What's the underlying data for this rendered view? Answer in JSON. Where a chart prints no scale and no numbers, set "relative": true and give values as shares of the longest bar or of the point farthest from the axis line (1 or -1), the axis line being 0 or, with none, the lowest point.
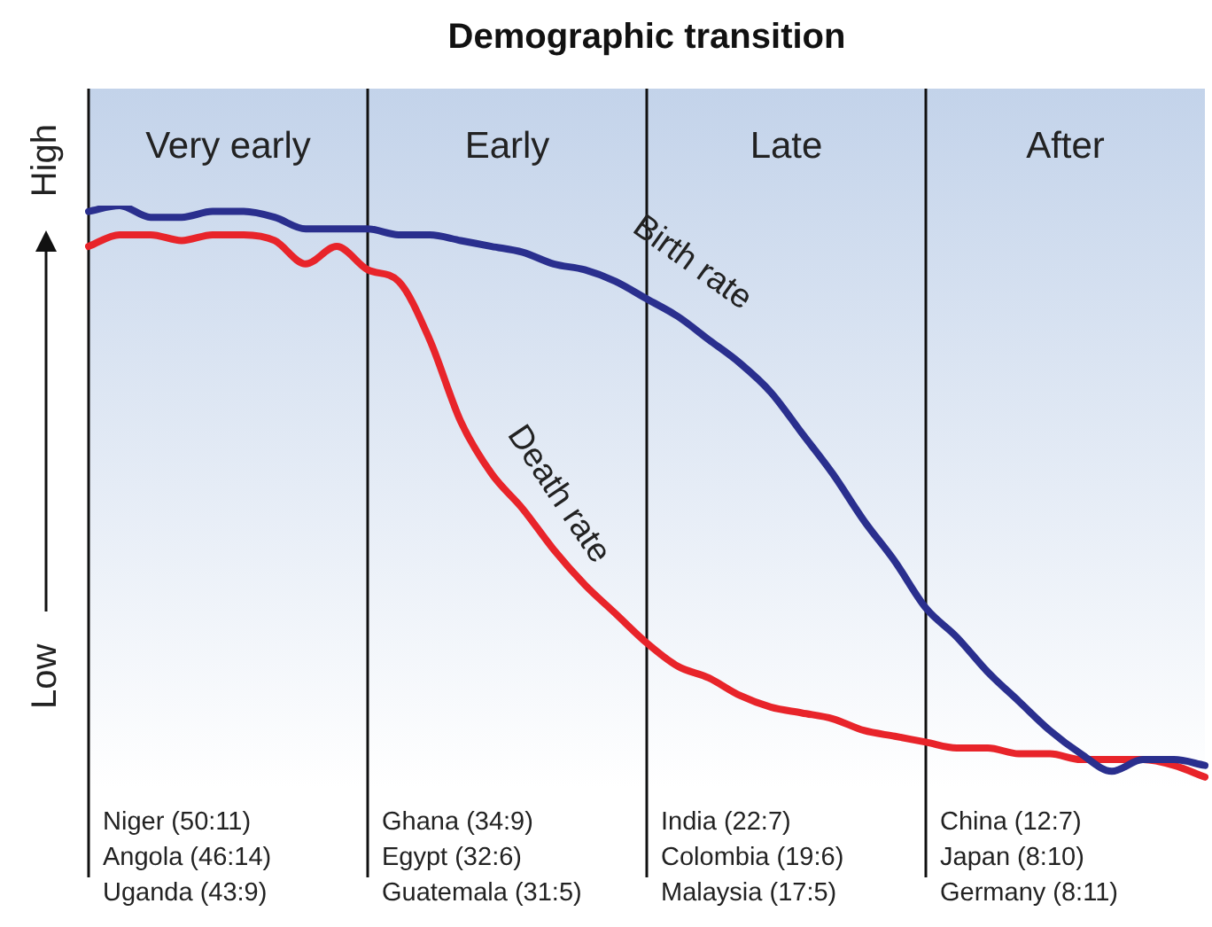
{
  "chart_data": {
    "type": "line",
    "title": "Demographic transition",
    "relative": true,
    "legend": false,
    "grid": "x",
    "line_style": "solid",
    "categories": [
      null,
      null,
      null,
      null,
      null,
      null,
      null,
      null,
      null,
      null,
      null,
      null,
      null,
      null,
      null,
      null,
      null,
      null,
      null,
      null,
      null,
      null,
      null,
      null,
      null,
      null,
      null,
      null,
      null,
      null,
      null,
      null,
      null,
      null,
      null,
      null,
      null
    ],
    "series": [
      {
        "name": "Birth rate",
        "color": "#2a2f8e",
        "values": [
          0.99,
          1,
          0.98,
          0.98,
          0.99,
          0.99,
          0.98,
          0.96,
          0.96,
          0.96,
          0.95,
          0.95,
          0.94,
          0.93,
          0.92,
          0.9,
          0.89,
          0.87,
          0.84,
          0.81,
          0.77,
          0.73,
          0.68,
          0.61,
          0.54,
          0.46,
          0.39,
          0.31,
          0.26,
          0.2,
          0.15,
          0.1,
          0.06,
          0.03,
          0.05,
          0.05,
          0.04
        ]
      },
      {
        "name": "Death rate",
        "color": "#e8242a",
        "values": [
          0.93,
          0.95,
          0.95,
          0.94,
          0.95,
          0.95,
          0.94,
          0.9,
          0.93,
          0.89,
          0.87,
          0.77,
          0.63,
          0.54,
          0.48,
          0.41,
          0.35,
          0.3,
          0.25,
          0.21,
          0.19,
          0.16,
          0.14,
          0.13,
          0.12,
          0.1,
          0.09,
          0.08,
          0.07,
          0.07,
          0.06,
          0.06,
          0.05,
          0.05,
          0.05,
          0.04,
          0.02
        ]
      }
    ],
    "annotations": [
      "High",
      "Low",
      "Very early",
      "Early",
      "Late",
      "After",
      "Niger (50:11)",
      "Angola (46:14)",
      "Uganda (43:9)",
      "Ghana (34:9)",
      "Egypt (32:6)",
      "Guatemala (31:5)",
      "India (22:7)",
      "Colombia (19:6)",
      "Malaysia (17:5)",
      "China (12:7)",
      "Japan (8:10)",
      "Germany (8:11)"
    ]
  }
}
